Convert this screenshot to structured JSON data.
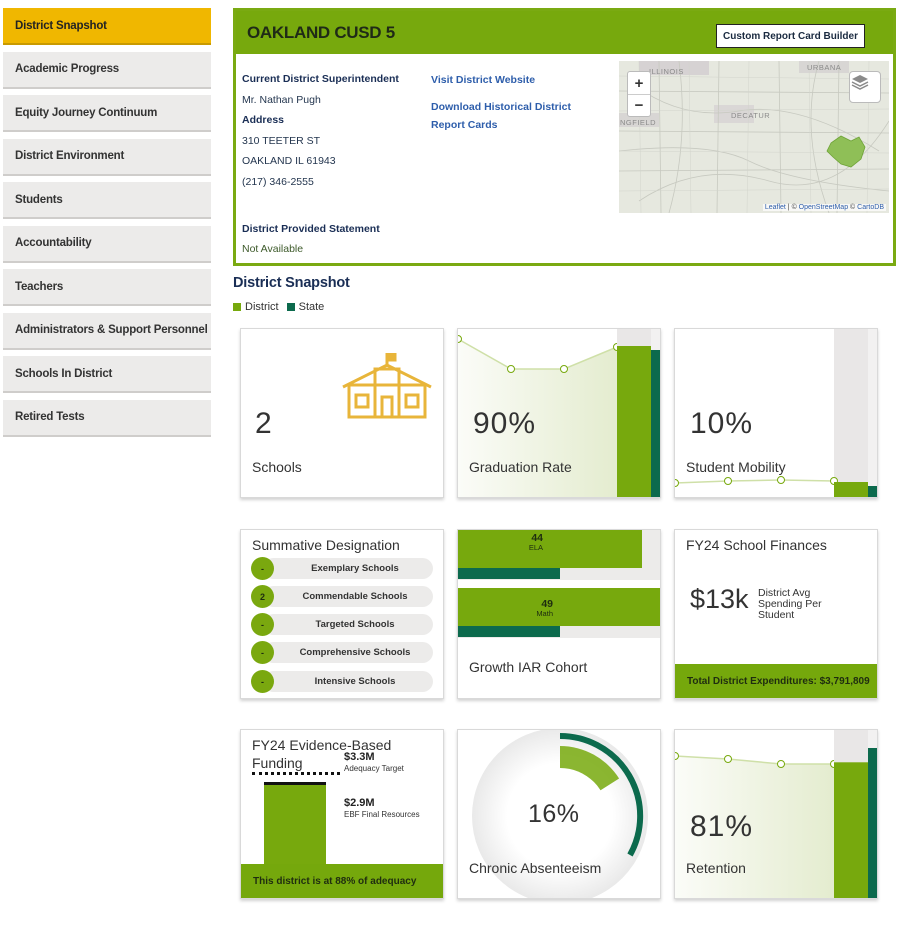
{
  "sidebar": {
    "items": [
      {
        "label": "District Snapshot",
        "active": true
      },
      {
        "label": "Academic Progress"
      },
      {
        "label": "Equity Journey Continuum"
      },
      {
        "label": "District Environment"
      },
      {
        "label": "Students"
      },
      {
        "label": "Accountability"
      },
      {
        "label": "Teachers"
      },
      {
        "label": "Administrators & Support Personnel"
      },
      {
        "label": "Schools In District"
      },
      {
        "label": "Retired Tests"
      }
    ]
  },
  "header": {
    "title": "OAKLAND CUSD 5",
    "report_button": "Custom Report Card Builder",
    "superintendent_label": "Current District Superintendent",
    "superintendent": "Mr. Nathan Pugh",
    "address_label": "Address",
    "address_line1": "310 TEETER ST",
    "address_line2": "OAKLAND IL 61943",
    "phone": "(217) 346-2555",
    "statement_label": "District Provided Statement",
    "statement": "Not Available",
    "link_website": "Visit District Website",
    "link_historical": "Download Historical District Report Cards"
  },
  "map": {
    "zoom_in": "+",
    "zoom_out": "−",
    "labels": {
      "illinois": "ILLINOIS",
      "urbana": "URBANA",
      "decatur": "DECATUR",
      "springfield": "NGFIELD"
    },
    "attribution_leaflet": "Leaflet",
    "attribution_sep1": " | © ",
    "attribution_osm": "OpenStreetMap",
    "attribution_sep2": " © ",
    "attribution_carto": "CartoDB"
  },
  "snapshot": {
    "title": "District Snapshot",
    "legend": {
      "district": "District",
      "state": "State"
    },
    "colors": {
      "district": "#77a90d",
      "state": "#0c6a4d",
      "gold": "#e8b53a"
    }
  },
  "cards": {
    "schools": {
      "value": "2",
      "label": "Schools",
      "icon": "school-building-icon"
    },
    "graduation": {
      "value": "90%",
      "label": "Graduation Rate",
      "district": 90
    },
    "mobility": {
      "value": "10%",
      "label": "Student Mobility",
      "district": 10
    },
    "designation": {
      "title": "Summative Designation",
      "rows": [
        {
          "count": "-",
          "label": "Exemplary Schools"
        },
        {
          "count": "2",
          "label": "Commendable Schools"
        },
        {
          "count": "-",
          "label": "Targeted Schools"
        },
        {
          "count": "-",
          "label": "Comprehensive Schools"
        },
        {
          "count": "-",
          "label": "Intensive Schools"
        }
      ]
    },
    "growth": {
      "label": "Growth IAR Cohort",
      "ela": {
        "value": "44",
        "label": "ELA",
        "district": 44
      },
      "math": {
        "value": "49",
        "label": "Math",
        "district": 49
      }
    },
    "finances": {
      "title": "FY24 School Finances",
      "value": "$13k",
      "desc": "District Avg Spending Per Student",
      "footer": "Total District Expenditures: $3,791,809"
    },
    "ebf": {
      "title": "FY24 Evidence-Based Funding",
      "target_value": "$3.3M",
      "target_label": "Adequacy Target",
      "final_value": "$2.9M",
      "final_label": "EBF Final Resources",
      "footer": "This district is at 88% of adequacy",
      "adequacy_pct": 88
    },
    "absenteeism": {
      "value": "16%",
      "label": "Chronic Absenteeism",
      "district": 16
    },
    "retention": {
      "value": "81%",
      "label": "Retention",
      "district": 81
    }
  }
}
